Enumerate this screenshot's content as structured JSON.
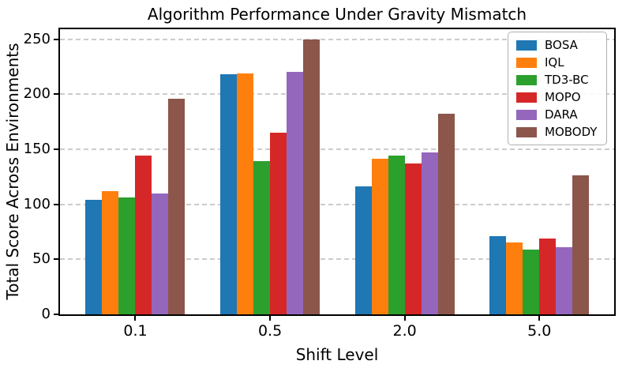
{
  "chart_data": {
    "type": "bar",
    "title": "Algorithm Performance Under Gravity Mismatch",
    "xlabel": "Shift Level",
    "ylabel": "Total Score Across Environments",
    "categories": [
      "0.1",
      "0.5",
      "2.0",
      "5.0"
    ],
    "series": [
      {
        "name": "BOSA",
        "color": "#1f77b4",
        "values": [
          104,
          218,
          116,
          71
        ]
      },
      {
        "name": "IQL",
        "color": "#ff7f0e",
        "values": [
          112,
          219,
          141,
          65
        ]
      },
      {
        "name": "TD3-BC",
        "color": "#2ca02c",
        "values": [
          106,
          139,
          144,
          59
        ]
      },
      {
        "name": "MOPO",
        "color": "#d62728",
        "values": [
          144,
          165,
          137,
          69
        ]
      },
      {
        "name": "DARA",
        "color": "#9467bd",
        "values": [
          110,
          220,
          147,
          61
        ]
      },
      {
        "name": "MOBODY",
        "color": "#8c564b",
        "values": [
          196,
          250,
          182,
          126
        ]
      }
    ],
    "ylim": [
      0,
      259
    ],
    "yticks": [
      0,
      50,
      100,
      150,
      200,
      250
    ],
    "grid": "horizontal dashed",
    "legend_position": "upper right",
    "axis_color": "#000000",
    "grid_color": "#cccccc"
  }
}
